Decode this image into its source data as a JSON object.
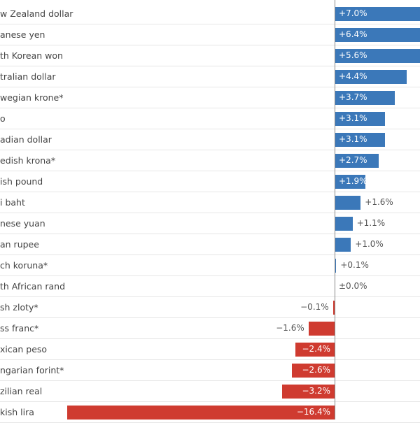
{
  "chart_data": {
    "type": "bar",
    "orientation": "horizontal",
    "categories": [
      "w Zealand dollar",
      "anese yen",
      "th Korean won",
      "tralian dollar",
      "wegian krone*",
      "o",
      "adian dollar",
      "edish krona*",
      "ish pound",
      "i baht",
      "nese yuan",
      "an rupee",
      "ch koruna*",
      "th African rand",
      "sh zloty*",
      "ss franc*",
      "xican peso",
      "ngarian forint*",
      "zilian real",
      "kish lira"
    ],
    "values": [
      7.0,
      6.4,
      5.6,
      4.4,
      3.7,
      3.1,
      3.1,
      2.7,
      1.9,
      1.6,
      1.1,
      1.0,
      0.1,
      0.0,
      -0.1,
      -1.6,
      -2.4,
      -2.6,
      -3.2,
      -16.4
    ],
    "value_labels": [
      "+7.0%",
      "+6.4%",
      "+5.6%",
      "+4.4%",
      "+3.7%",
      "+3.1%",
      "+3.1%",
      "+2.7%",
      "+1.9%",
      "+1.6%",
      "+1.1%",
      "+1.0%",
      "+0.1%",
      "±0.0%",
      "−0.1%",
      "−1.6%",
      "−2.4%",
      "−2.6%",
      "−3.2%",
      "−16.4%"
    ],
    "unit": "%",
    "grid": false,
    "colors": {
      "positive": "#3b78b9",
      "negative": "#cf3b30"
    }
  }
}
